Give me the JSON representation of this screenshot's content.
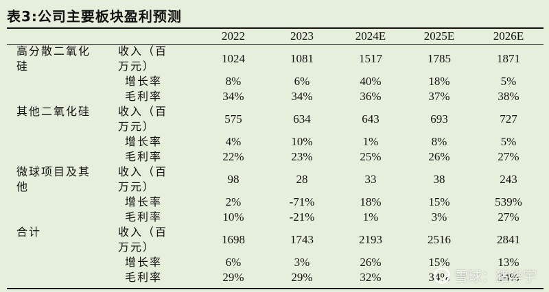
{
  "title": "表3:公司主要板块盈利预测",
  "columns": [
    "2022",
    "2023",
    "2024E",
    "2025E",
    "2026E"
  ],
  "segments": [
    {
      "name": "高分散二氧化硅",
      "rows": [
        {
          "metric": "收入（百万元）",
          "values": [
            "1024",
            "1081",
            "1517",
            "1785",
            "1871"
          ]
        },
        {
          "metric": "增长率",
          "values": [
            "8%",
            "6%",
            "40%",
            "18%",
            "5%"
          ]
        },
        {
          "metric": "毛利率",
          "values": [
            "34%",
            "34%",
            "36%",
            "37%",
            "38%"
          ]
        }
      ]
    },
    {
      "name": "其他二氧化硅",
      "rows": [
        {
          "metric": "收入（百万元）",
          "values": [
            "575",
            "634",
            "643",
            "693",
            "727"
          ]
        },
        {
          "metric": "增长率",
          "values": [
            "4%",
            "10%",
            "1%",
            "8%",
            "5%"
          ]
        },
        {
          "metric": "毛利率",
          "values": [
            "22%",
            "23%",
            "25%",
            "26%",
            "27%"
          ]
        }
      ]
    },
    {
      "name": "微球项目及其他",
      "rows": [
        {
          "metric": "收入（百万元）",
          "values": [
            "98",
            "28",
            "33",
            "38",
            "243"
          ]
        },
        {
          "metric": "增长率",
          "values": [
            "2%",
            "-71%",
            "18%",
            "15%",
            "539%"
          ]
        },
        {
          "metric": "毛利率",
          "values": [
            "10%",
            "-21%",
            "1%",
            "3%",
            "27%"
          ]
        }
      ]
    },
    {
      "name": "合计",
      "rows": [
        {
          "metric": "收入（百万元）",
          "values": [
            "1698",
            "1743",
            "2193",
            "2516",
            "2841"
          ]
        },
        {
          "metric": "增长率",
          "values": [
            "6%",
            "3%",
            "26%",
            "15%",
            "13%"
          ]
        },
        {
          "metric": "毛利率",
          "values": [
            "29%",
            "29%",
            "32%",
            "34%",
            "34%"
          ]
        }
      ]
    }
  ],
  "watermark": "雪球：猪华宇",
  "colors": {
    "background": "#e6efdc",
    "text": "#111111"
  }
}
